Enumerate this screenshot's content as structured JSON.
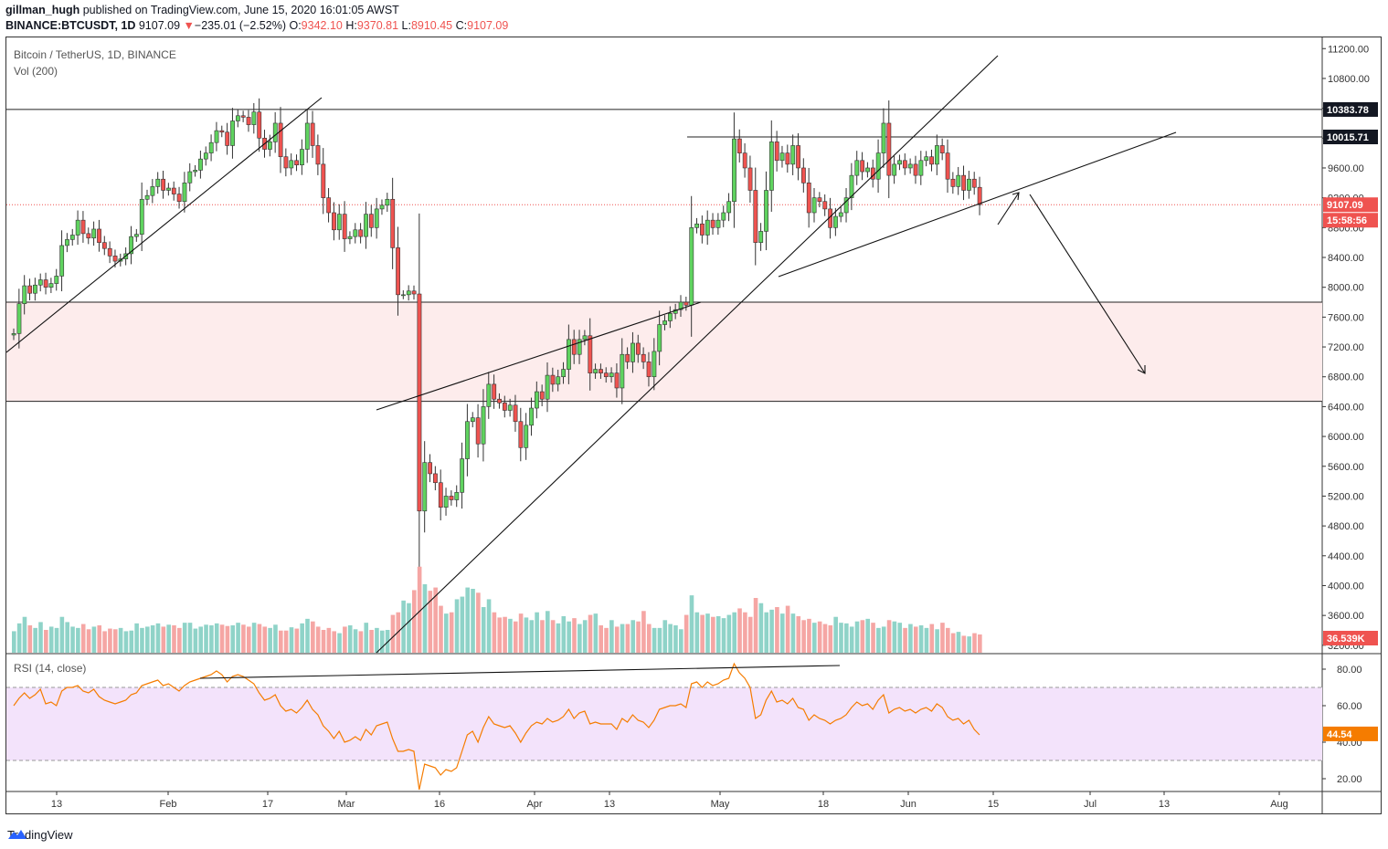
{
  "header": {
    "author": "gillman_hugh",
    "published_text": "published on TradingView.com, June 15, 2020 16:01:05 AWST",
    "symbol": "BINANCE:BTCUSDT, 1D",
    "last": "9107.09",
    "change_arrow": "▼",
    "change": "−235.01 (−2.52%)",
    "open_label": "O:",
    "open": "9342.10",
    "high_label": "H:",
    "high": "9370.81",
    "low_label": "L:",
    "low": "8910.45",
    "close_label": "C:",
    "close": "9107.09"
  },
  "legend": {
    "title": "Bitcoin / TetherUS, 1D, BINANCE",
    "vol": "Vol (200)",
    "rsi": "RSI (14, close)"
  },
  "footer": {
    "brand": "TradingView"
  },
  "colors": {
    "up": "#26a69a",
    "upFill": "#5fd35f",
    "down": "#ef5350",
    "zone": "#fdecec",
    "rsiBand": "#f3e3fb",
    "rsiLine": "#f57c00"
  },
  "tags": {
    "t1": "10383.78",
    "t2": "10015.71",
    "t3": "9107.09",
    "t4": "15:58:56",
    "t5": "36.539K",
    "t6": "44.54"
  },
  "chart_data": {
    "type": "candlestick",
    "title": "Bitcoin / TetherUS, 1D, BINANCE",
    "price_axis": [
      11200,
      10800,
      10400,
      10000,
      9600,
      9200,
      8800,
      8400,
      8000,
      7600,
      7200,
      6800,
      6400,
      6000,
      5600,
      5200,
      4800,
      4400,
      4000,
      3600,
      3200
    ],
    "price_axis_labels": [
      "11200.00",
      "10800.00",
      "10400.00",
      "10000.00",
      "9600.00",
      "9200.00",
      "8800.00",
      "8400.00",
      "8000.00",
      "7600.00",
      "7200.00",
      "6800.00",
      "6400.00",
      "6000.00",
      "5600.00",
      "5200.00",
      "4800.00",
      "4400.00",
      "4000.00",
      "3600.00",
      "3200.00"
    ],
    "ylim": [
      3100,
      11350
    ],
    "time_axis": [
      "13",
      "Feb",
      "17",
      "Mar",
      "16",
      "Apr",
      "13",
      "May",
      "18",
      "Jun",
      "15",
      "Jul",
      "13",
      "Aug"
    ],
    "rsi_axis": [
      "80.00",
      "60.00",
      "40.00",
      "20.00"
    ],
    "rsi_axis_values": [
      80,
      60,
      40,
      20
    ],
    "rsi_levels": [
      70,
      30
    ],
    "horizontal_levels": [
      10383.78,
      10015.71,
      7800,
      6470
    ],
    "support_zone": [
      6470,
      7800
    ],
    "current_price": 9107.09,
    "closes": [
      7380,
      7780,
      8020,
      7920,
      8030,
      8100,
      8000,
      8050,
      8150,
      8560,
      8640,
      8700,
      8900,
      8720,
      8660,
      8780,
      8600,
      8520,
      8420,
      8350,
      8380,
      8450,
      8680,
      8710,
      9180,
      9230,
      9350,
      9450,
      9300,
      9330,
      9250,
      9150,
      9400,
      9550,
      9570,
      9720,
      9800,
      9940,
      10100,
      10080,
      9900,
      10230,
      10300,
      10280,
      10180,
      10350,
      10000,
      9850,
      9950,
      10200,
      9750,
      9600,
      9700,
      9640,
      9850,
      10200,
      9900,
      9650,
      9200,
      9000,
      8770,
      8980,
      8650,
      8680,
      8770,
      8680,
      8980,
      8800,
      9050,
      9100,
      9180,
      8530,
      7900,
      7900,
      7950,
      7910,
      5000,
      5650,
      5500,
      5380,
      5050,
      5200,
      5150,
      5250,
      5700,
      6200,
      6250,
      5900,
      6400,
      6700,
      6500,
      6450,
      6350,
      6420,
      6200,
      5850,
      6150,
      6380,
      6600,
      6500,
      6820,
      6700,
      6800,
      6900,
      7300,
      7100,
      7300,
      7350,
      6850,
      6900,
      6850,
      6800,
      6850,
      6650,
      7100,
      7000,
      7250,
      7100,
      7000,
      6800,
      7140,
      7500,
      7550,
      7650,
      7700,
      7800,
      7760,
      8800,
      8850,
      8700,
      8900,
      8800,
      8900,
      9000,
      9150,
      9990,
      9800,
      9600,
      9300,
      8600,
      8750,
      9300,
      9950,
      9700,
      9800,
      9650,
      9900,
      9600,
      9400,
      9000,
      9200,
      9150,
      9050,
      8800,
      8950,
      9000,
      9200,
      9500,
      9700,
      9550,
      9600,
      9450,
      9800,
      10200,
      9500,
      9650,
      9700,
      9600,
      9650,
      9500,
      9700,
      9750,
      9650,
      9900,
      9800,
      9450,
      9350,
      9500,
      9300,
      9450,
      9340,
      9107
    ],
    "rsi": [
      60,
      64,
      67,
      64,
      66,
      69,
      61,
      62,
      60,
      68,
      70,
      70,
      71,
      68,
      67,
      69,
      65,
      63,
      62,
      61,
      62,
      63,
      66,
      67,
      71,
      72,
      73,
      74,
      71,
      72,
      70,
      68,
      71,
      73,
      74,
      75,
      76,
      77,
      79,
      77,
      73,
      76,
      77,
      76,
      74,
      72,
      67,
      63,
      64,
      66,
      60,
      57,
      58,
      56,
      59,
      63,
      58,
      55,
      49,
      46,
      42,
      46,
      40,
      41,
      43,
      41,
      47,
      44,
      49,
      50,
      51,
      42,
      35,
      35,
      36,
      35,
      14,
      28,
      27,
      26,
      22,
      25,
      24,
      26,
      35,
      44,
      46,
      40,
      48,
      54,
      50,
      49,
      48,
      49,
      45,
      40,
      45,
      49,
      51,
      50,
      53,
      51,
      52,
      54,
      58,
      53,
      56,
      57,
      50,
      51,
      50,
      50,
      50,
      47,
      53,
      51,
      55,
      52,
      51,
      48,
      52,
      58,
      59,
      60,
      60,
      61,
      59,
      72,
      73,
      70,
      73,
      71,
      72,
      74,
      75,
      83,
      78,
      75,
      70,
      53,
      55,
      63,
      68,
      62,
      63,
      61,
      64,
      59,
      58,
      52,
      55,
      53,
      52,
      50,
      52,
      53,
      55,
      59,
      62,
      60,
      61,
      58,
      63,
      66,
      56,
      58,
      59,
      57,
      58,
      56,
      58,
      59,
      57,
      61,
      59,
      54,
      52,
      53,
      50,
      52,
      47,
      44
    ],
    "volume": [
      33,
      45,
      55,
      42,
      38,
      47,
      35,
      40,
      38,
      55,
      47,
      40,
      38,
      44,
      36,
      40,
      42,
      33,
      37,
      36,
      38,
      33,
      34,
      45,
      38,
      40,
      42,
      45,
      40,
      43,
      42,
      38,
      46,
      46,
      37,
      40,
      43,
      42,
      45,
      43,
      41,
      42,
      46,
      43,
      40,
      46,
      44,
      40,
      38,
      43,
      34,
      34,
      39,
      37,
      45,
      52,
      48,
      40,
      35,
      38,
      33,
      30,
      40,
      42,
      36,
      33,
      46,
      35,
      38,
      34,
      35,
      58,
      62,
      80,
      76,
      96,
      132,
      105,
      95,
      100,
      72,
      60,
      62,
      82,
      86,
      100,
      98,
      92,
      70,
      82,
      62,
      54,
      55,
      52,
      48,
      60,
      54,
      50,
      62,
      50,
      64,
      50,
      45,
      56,
      48,
      53,
      44,
      50,
      58,
      60,
      42,
      38,
      50,
      40,
      44,
      44,
      50,
      48,
      64,
      44,
      38,
      38,
      50,
      44,
      42,
      36,
      58,
      88,
      62,
      58,
      60,
      55,
      56,
      53,
      58,
      62,
      68,
      62,
      55,
      84,
      76,
      62,
      66,
      70,
      60,
      72,
      60,
      56,
      50,
      52,
      46,
      48,
      44,
      42,
      55,
      46,
      45,
      40,
      48,
      50,
      52,
      46,
      38,
      40,
      50,
      48,
      46,
      38,
      44,
      40,
      42,
      38,
      44,
      36,
      46,
      38,
      30,
      32,
      26,
      25,
      30,
      28
    ]
  }
}
